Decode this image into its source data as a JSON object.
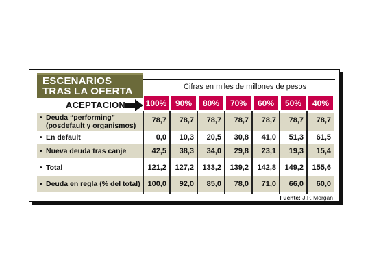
{
  "header": {
    "title_line1": "ESCENARIOS",
    "title_line2": "TRAS LA OFERTA",
    "subtitle": "Cifras en miles de millones de pesos",
    "acceptance_label": "ACEPTACION"
  },
  "acceptance": {
    "levels": [
      "100%",
      "90%",
      "80%",
      "70%",
      "60%",
      "50%",
      "40%"
    ]
  },
  "rows": [
    {
      "bullet": "•",
      "label_lines": [
        "Deuda “performing”",
        "(posdefault y organismos)"
      ],
      "values": [
        "78,7",
        "78,7",
        "78,7",
        "78,7",
        "78,7",
        "78,7",
        "78,7"
      ]
    },
    {
      "bullet": "•",
      "label_lines": [
        "En default"
      ],
      "values": [
        "0,0",
        "10,3",
        "20,5",
        "30,8",
        "41,0",
        "51,3",
        "61,5"
      ]
    },
    {
      "bullet": "•",
      "label_lines": [
        "Nueva deuda tras canje"
      ],
      "values": [
        "42,5",
        "38,3",
        "34,0",
        "29,8",
        "23,1",
        "19,3",
        "15,4"
      ]
    },
    {
      "bullet": "•",
      "label_lines": [
        "Total"
      ],
      "values": [
        "121,2",
        "127,2",
        "133,2",
        "139,2",
        "142,8",
        "149,2",
        "155,6"
      ]
    },
    {
      "bullet": "•",
      "label_lines": [
        "Deuda en regla (% del total)"
      ],
      "values": [
        "100,0",
        "92,0",
        "85,0",
        "78,0",
        "71,0",
        "66,0",
        "60,0"
      ]
    }
  ],
  "source": {
    "label": "Fuente:",
    "value": "J.P. Morgan"
  },
  "colors": {
    "title_bg": "#6b6a3a",
    "header_cell": "#c8004a",
    "row_shade": "#dcd9c6"
  },
  "chart_data": {
    "type": "table",
    "title": "ESCENARIOS TRAS LA OFERTA",
    "subtitle": "Cifras en miles de millones de pesos",
    "columns_header": "ACEPTACION",
    "columns": [
      "100%",
      "90%",
      "80%",
      "70%",
      "60%",
      "50%",
      "40%"
    ],
    "series": [
      {
        "name": "Deuda “performing” (posdefault y organismos)",
        "values": [
          78.7,
          78.7,
          78.7,
          78.7,
          78.7,
          78.7,
          78.7
        ]
      },
      {
        "name": "En default",
        "values": [
          0.0,
          10.3,
          20.5,
          30.8,
          41.0,
          51.3,
          61.5
        ]
      },
      {
        "name": "Nueva deuda tras canje",
        "values": [
          42.5,
          38.3,
          34.0,
          29.8,
          23.1,
          19.3,
          15.4
        ]
      },
      {
        "name": "Total",
        "values": [
          121.2,
          127.2,
          133.2,
          139.2,
          142.8,
          149.2,
          155.6
        ]
      },
      {
        "name": "Deuda en regla (% del total)",
        "values": [
          100.0,
          92.0,
          85.0,
          78.0,
          71.0,
          66.0,
          60.0
        ]
      }
    ],
    "source": "Fuente: J.P. Morgan"
  }
}
